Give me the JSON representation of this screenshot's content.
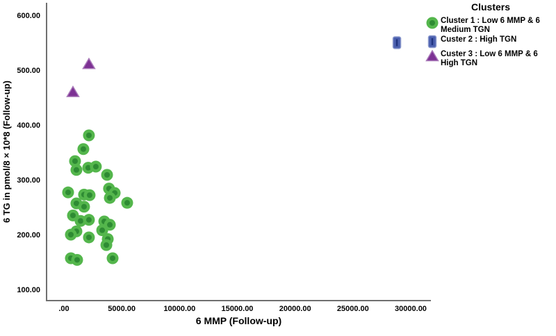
{
  "chart_data": {
    "type": "scatter",
    "title": "",
    "xlabel": "6 MMP (Follow-up)",
    "ylabel": "6 TG in pmol/8×10*8 (Follow-up)",
    "xlim": [
      0,
      31800
    ],
    "ylim": [
      80,
      622
    ],
    "grid": false,
    "x_ticks": {
      "values": [
        0,
        5000,
        10000,
        15000,
        20000,
        25000,
        30000
      ],
      "labels": [
        ".00",
        "5000.00",
        "10000.00",
        "15000.00",
        "20000.00",
        "25000.00",
        "30000.00"
      ]
    },
    "y_ticks": {
      "values": [
        600,
        500,
        400,
        300,
        200,
        100
      ],
      "labels": [
        "600.00",
        "500.00",
        "400.00",
        "300.00",
        "200.00",
        "100.00"
      ]
    },
    "legend": {
      "title": "Clusters",
      "position": "outside-top-right",
      "items": [
        {
          "label": "Cluster 1 : Low 6 MMP & 6 Medium TGN",
          "marker": "circle"
        },
        {
          "label": "Custer 2 : High TGN",
          "marker": "square"
        },
        {
          "label": "Custer 3 : Low 6 MMP & 6 High TGN",
          "marker": "triangle"
        }
      ]
    },
    "series": [
      {
        "name": "Cluster 1 : Low 6 MMP & 6 Medium TGN",
        "marker": "circle",
        "points": [
          [
            2160,
            381
          ],
          [
            1680,
            356
          ],
          [
            960,
            334
          ],
          [
            1080,
            318
          ],
          [
            2100,
            322
          ],
          [
            2760,
            324
          ],
          [
            3730,
            309
          ],
          [
            360,
            277
          ],
          [
            1740,
            273
          ],
          [
            2220,
            272
          ],
          [
            3900,
            284
          ],
          [
            4390,
            276
          ],
          [
            3970,
            267
          ],
          [
            5470,
            258
          ],
          [
            1080,
            257
          ],
          [
            1740,
            251
          ],
          [
            780,
            235
          ],
          [
            1440,
            225
          ],
          [
            2160,
            227
          ],
          [
            3490,
            224
          ],
          [
            3970,
            218
          ],
          [
            1080,
            206
          ],
          [
            600,
            200
          ],
          [
            3310,
            208
          ],
          [
            2160,
            195
          ],
          [
            3790,
            192
          ],
          [
            3670,
            181
          ],
          [
            600,
            157
          ],
          [
            1140,
            154
          ],
          [
            4210,
            157
          ]
        ]
      },
      {
        "name": "Custer 2 : High TGN",
        "marker": "square",
        "points": [
          [
            28800,
            550
          ]
        ]
      },
      {
        "name": "Custer 3 : Low 6 MMP & 6 High TGN",
        "marker": "triangle",
        "points": [
          [
            780,
            460
          ],
          [
            2160,
            511
          ]
        ]
      }
    ],
    "colors": {
      "cluster1_fill": "#54b64c",
      "cluster1_dot": "#2e8b33",
      "cluster2_fill": "#4a5fae",
      "cluster2_line": "#20337f",
      "cluster2_border": "#8d9bce",
      "cluster3_fill": "#7d3194",
      "cluster3_border": "#a878b8",
      "axis_line": "#6f6f6f",
      "text": "#000000"
    }
  }
}
